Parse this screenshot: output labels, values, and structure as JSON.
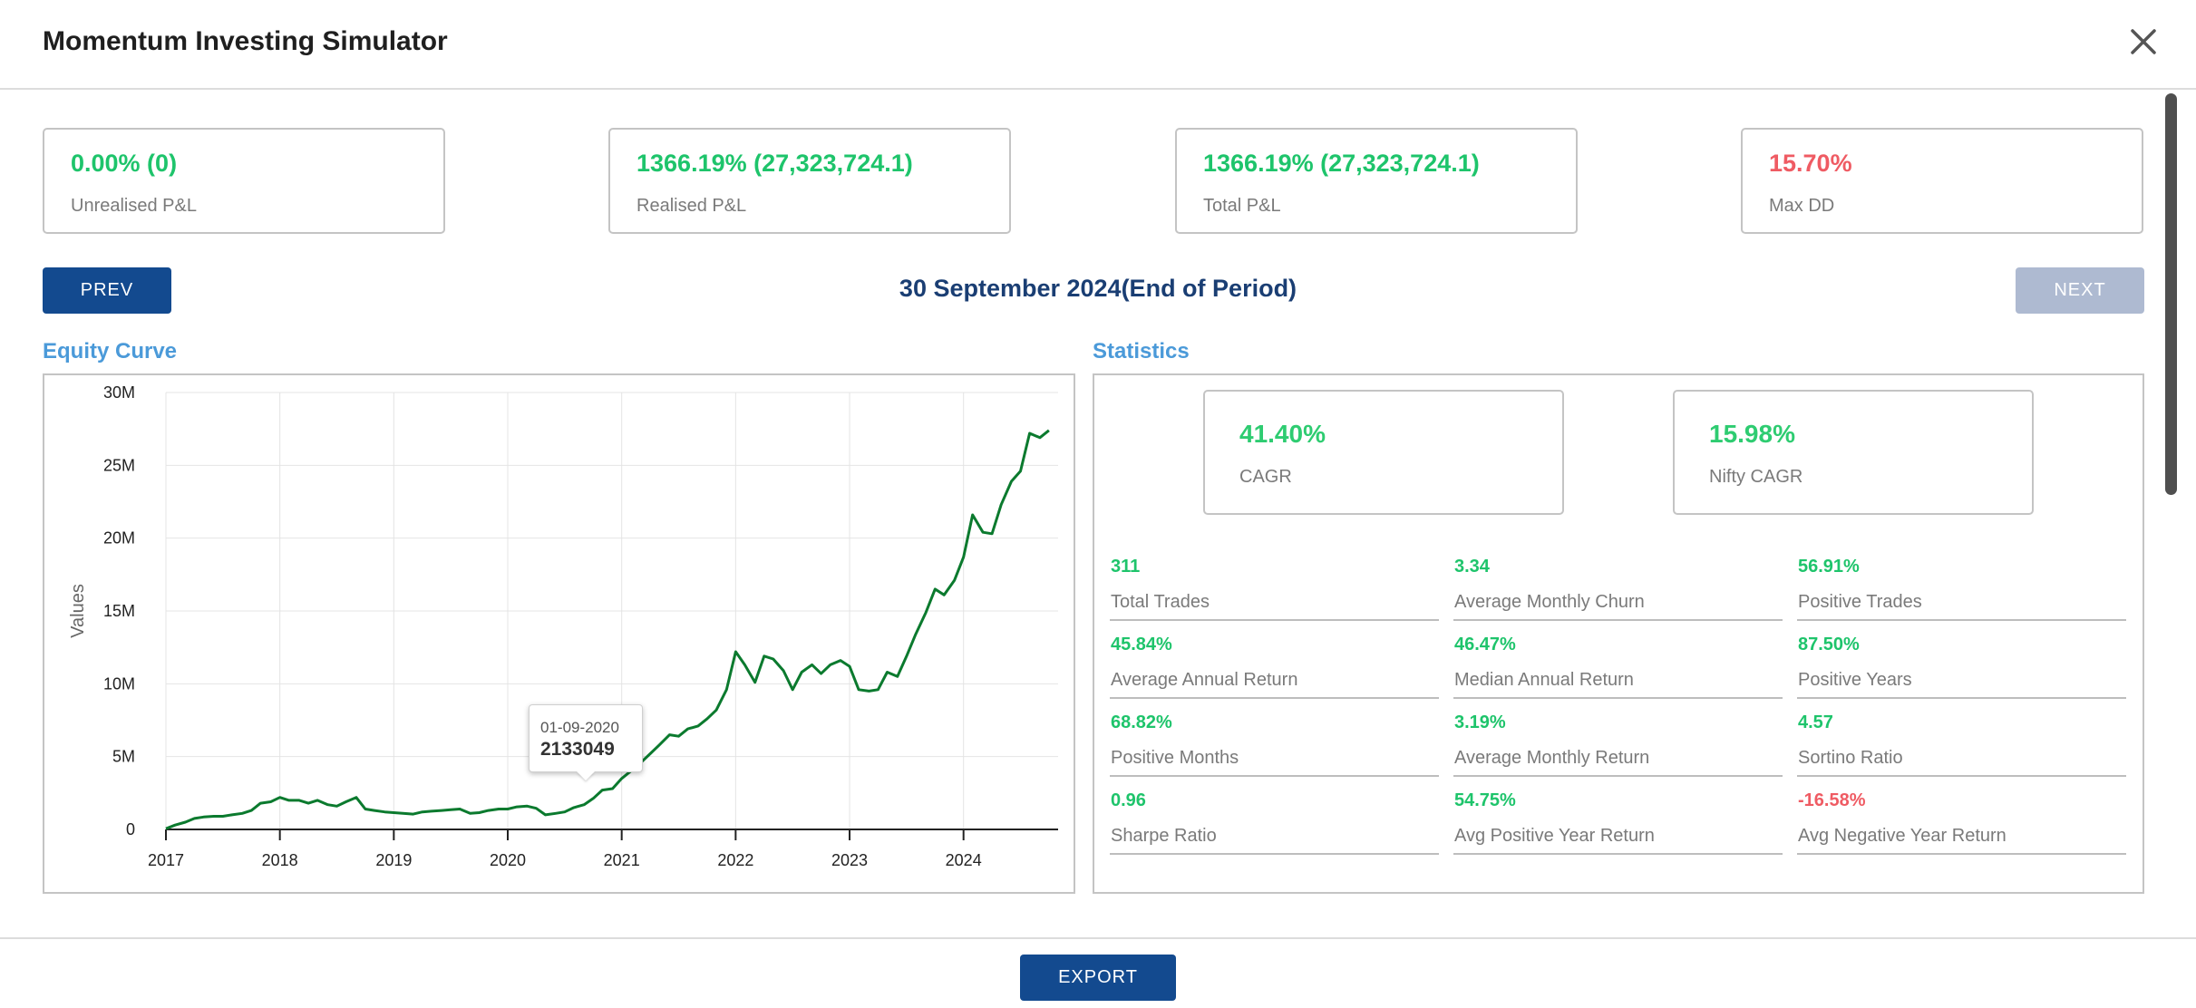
{
  "app": {
    "title": "Momentum Investing Simulator"
  },
  "summary_cards": [
    {
      "value": "0.00% (0)",
      "label": "Unrealised P&L",
      "tone": "green"
    },
    {
      "value": "1366.19% (27,323,724.1)",
      "label": "Realised P&L",
      "tone": "green"
    },
    {
      "value": "1366.19% (27,323,724.1)",
      "label": "Total P&L",
      "tone": "green"
    },
    {
      "value": "15.70%",
      "label": "Max DD",
      "tone": "red"
    }
  ],
  "nav": {
    "prev_label": "PREV",
    "next_label": "NEXT",
    "period_label": "30 September 2024(End of Period)"
  },
  "equity": {
    "title": "Equity Curve"
  },
  "statistics": {
    "title": "Statistics"
  },
  "stat_cards": [
    {
      "value": "41.40%",
      "label": "CAGR"
    },
    {
      "value": "15.98%",
      "label": "Nifty CAGR"
    }
  ],
  "stats": [
    {
      "value": "311",
      "label": "Total Trades",
      "tone": "green"
    },
    {
      "value": "3.34",
      "label": "Average Monthly Churn",
      "tone": "green"
    },
    {
      "value": "56.91%",
      "label": "Positive Trades",
      "tone": "green"
    },
    {
      "value": "45.84%",
      "label": "Average Annual Return",
      "tone": "green"
    },
    {
      "value": "46.47%",
      "label": "Median Annual Return",
      "tone": "green"
    },
    {
      "value": "87.50%",
      "label": "Positive Years",
      "tone": "green"
    },
    {
      "value": "68.82%",
      "label": "Positive Months",
      "tone": "green"
    },
    {
      "value": "3.19%",
      "label": "Average Monthly Return",
      "tone": "green"
    },
    {
      "value": "4.57",
      "label": "Sortino Ratio",
      "tone": "green"
    },
    {
      "value": "0.96",
      "label": "Sharpe Ratio",
      "tone": "green"
    },
    {
      "value": "54.75%",
      "label": "Avg Positive Year Return",
      "tone": "green"
    },
    {
      "value": "-16.58%",
      "label": "Avg Negative Year Return",
      "tone": "red"
    }
  ],
  "tooltip": {
    "date": "01-09-2020",
    "value": "2133049"
  },
  "footer": {
    "export_label": "EXPORT"
  },
  "colors": {
    "accent": "#134a8f",
    "positive": "#1ec46b",
    "negative": "#ef5b63",
    "line": "#0b7a2e",
    "section_title": "#4b9ad9"
  },
  "icons": {
    "close": "close-icon"
  },
  "chart_data": {
    "type": "line",
    "ylabel": "Values",
    "xlabel": "",
    "x_tick_labels": [
      "2017",
      "2018",
      "2019",
      "2020",
      "2021",
      "2022",
      "2023",
      "2024"
    ],
    "y_tick_labels": [
      "0",
      "5M",
      "10M",
      "15M",
      "20M",
      "25M",
      "30M"
    ],
    "xlim": [
      2017.0,
      2024.83
    ],
    "ylim": [
      0,
      30000000
    ],
    "grid": true,
    "series": [
      {
        "color": "#0b7a2e",
        "x": [
          2017.0,
          2017.08,
          2017.17,
          2017.25,
          2017.33,
          2017.42,
          2017.5,
          2017.58,
          2017.67,
          2017.75,
          2017.83,
          2017.92,
          2018.0,
          2018.08,
          2018.17,
          2018.25,
          2018.33,
          2018.42,
          2018.5,
          2018.58,
          2018.67,
          2018.75,
          2018.83,
          2018.92,
          2019.0,
          2019.08,
          2019.17,
          2019.25,
          2019.33,
          2019.42,
          2019.5,
          2019.58,
          2019.67,
          2019.75,
          2019.83,
          2019.92,
          2020.0,
          2020.08,
          2020.17,
          2020.25,
          2020.33,
          2020.42,
          2020.5,
          2020.58,
          2020.67,
          2020.75,
          2020.83,
          2020.92,
          2021.0,
          2021.08,
          2021.17,
          2021.25,
          2021.33,
          2021.42,
          2021.5,
          2021.58,
          2021.67,
          2021.75,
          2021.83,
          2021.92,
          2022.0,
          2022.08,
          2022.17,
          2022.25,
          2022.33,
          2022.42,
          2022.5,
          2022.58,
          2022.67,
          2022.75,
          2022.83,
          2022.92,
          2023.0,
          2023.08,
          2023.17,
          2023.25,
          2023.33,
          2023.42,
          2023.5,
          2023.58,
          2023.67,
          2023.75,
          2023.83,
          2023.92,
          2024.0,
          2024.08,
          2024.17,
          2024.25,
          2024.33,
          2024.42,
          2024.5,
          2024.58,
          2024.67,
          2024.75
        ],
        "y": [
          0.05,
          0.3,
          0.5,
          0.75,
          0.85,
          0.9,
          0.9,
          1.0,
          1.1,
          1.3,
          1.8,
          1.9,
          2.2,
          2.0,
          2.0,
          1.8,
          2.0,
          1.7,
          1.6,
          1.9,
          2.2,
          1.4,
          1.3,
          1.2,
          1.15,
          1.1,
          1.05,
          1.2,
          1.25,
          1.3,
          1.35,
          1.4,
          1.1,
          1.15,
          1.3,
          1.4,
          1.4,
          1.55,
          1.6,
          1.45,
          1.0,
          1.1,
          1.2,
          1.5,
          1.7,
          2.13,
          2.7,
          2.8,
          3.5,
          4.0,
          4.6,
          5.2,
          5.8,
          6.5,
          6.4,
          6.9,
          7.1,
          7.6,
          8.2,
          9.6,
          12.2,
          11.3,
          10.1,
          11.9,
          11.7,
          10.9,
          9.6,
          10.8,
          11.3,
          10.7,
          11.3,
          11.6,
          11.2,
          9.6,
          9.5,
          9.6,
          10.8,
          10.5,
          11.9,
          13.4,
          14.9,
          16.5,
          16.1,
          17.1,
          18.7,
          21.6,
          20.4,
          20.3,
          22.3,
          23.9,
          24.6,
          27.2,
          26.9,
          27.4
        ]
      }
    ]
  }
}
